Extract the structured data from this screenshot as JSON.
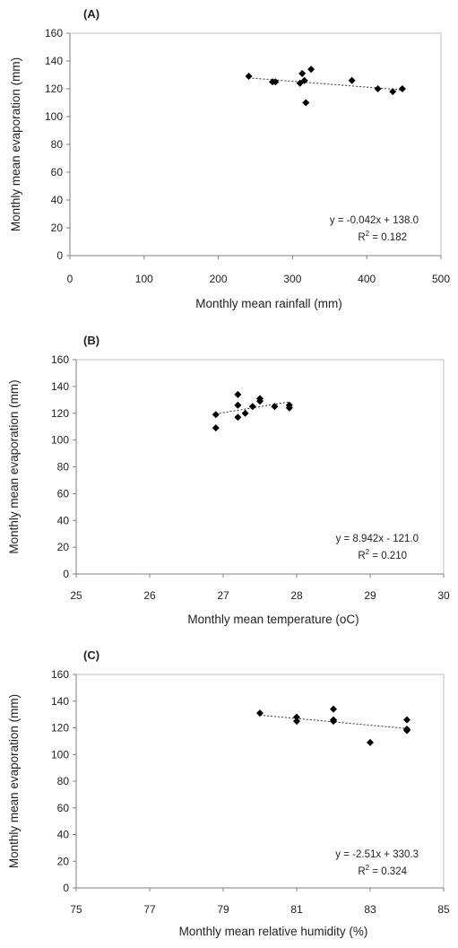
{
  "chart_data": [
    {
      "type": "scatter",
      "panel_label": "(A)",
      "xlabel": "Monthly mean rainfall (mm)",
      "ylabel": "Monthly mean evaporation (mm)",
      "xlim": [
        0,
        500
      ],
      "ylim": [
        0,
        160
      ],
      "xticks": [
        0,
        100,
        200,
        300,
        400,
        500
      ],
      "yticks": [
        0,
        20,
        40,
        60,
        80,
        100,
        120,
        140,
        160
      ],
      "points": [
        [
          241,
          129
        ],
        [
          273,
          125
        ],
        [
          277,
          125
        ],
        [
          310,
          124
        ],
        [
          313,
          131
        ],
        [
          316,
          126
        ],
        [
          318,
          110
        ],
        [
          325,
          134
        ],
        [
          380,
          126
        ],
        [
          415,
          120
        ],
        [
          435,
          118
        ],
        [
          448,
          120
        ]
      ],
      "trendline": {
        "slope": -0.042,
        "intercept": 138.0,
        "x_range": [
          241,
          448
        ],
        "style": "dotted"
      },
      "equation_text": "y = -0.042x + 138.0",
      "r2_prefix": "R",
      "r2_suffix": " = 0.182",
      "grid": false,
      "marker": "diamond"
    },
    {
      "type": "scatter",
      "panel_label": "(B)",
      "xlabel": "Monthly mean temperature (oC)",
      "ylabel": "Monthly mean evaporation (mm)",
      "xlim": [
        25,
        30
      ],
      "ylim": [
        0,
        160
      ],
      "xticks": [
        25,
        26,
        27,
        28,
        29,
        30
      ],
      "yticks": [
        0,
        20,
        40,
        60,
        80,
        100,
        120,
        140,
        160
      ],
      "points": [
        [
          26.9,
          119
        ],
        [
          26.9,
          109
        ],
        [
          27.2,
          134
        ],
        [
          27.2,
          126
        ],
        [
          27.2,
          117
        ],
        [
          27.3,
          120
        ],
        [
          27.4,
          125
        ],
        [
          27.5,
          131
        ],
        [
          27.5,
          129
        ],
        [
          27.7,
          125
        ],
        [
          27.9,
          126
        ],
        [
          27.9,
          124
        ]
      ],
      "trendline": {
        "slope": 8.942,
        "intercept": -121.0,
        "x_range": [
          26.9,
          27.9
        ],
        "style": "dotted"
      },
      "equation_text": "y = 8.942x - 121.0",
      "r2_prefix": "R",
      "r2_suffix": " = 0.210",
      "grid": false,
      "marker": "diamond"
    },
    {
      "type": "scatter",
      "panel_label": "(C)",
      "xlabel": "Monthly mean  relative humidity (%)",
      "ylabel": "Monthly mean evaporation (mm)",
      "xlim": [
        75,
        85
      ],
      "ylim": [
        0,
        160
      ],
      "xticks": [
        75,
        77,
        79,
        81,
        83,
        85
      ],
      "yticks": [
        0,
        20,
        40,
        60,
        80,
        100,
        120,
        140,
        160
      ],
      "points": [
        [
          80,
          131
        ],
        [
          81,
          128
        ],
        [
          81,
          125
        ],
        [
          82,
          134
        ],
        [
          82,
          126
        ],
        [
          82,
          125
        ],
        [
          83,
          109
        ],
        [
          84,
          126
        ],
        [
          84,
          119
        ],
        [
          84,
          118
        ]
      ],
      "trendline": {
        "slope": -2.51,
        "intercept": 330.3,
        "x_range": [
          80,
          84
        ],
        "style": "dotted"
      },
      "equation_text": "y = -2.51x + 330.3",
      "r2_prefix": "R",
      "r2_suffix": " = 0.324",
      "grid": false,
      "marker": "diamond"
    }
  ]
}
